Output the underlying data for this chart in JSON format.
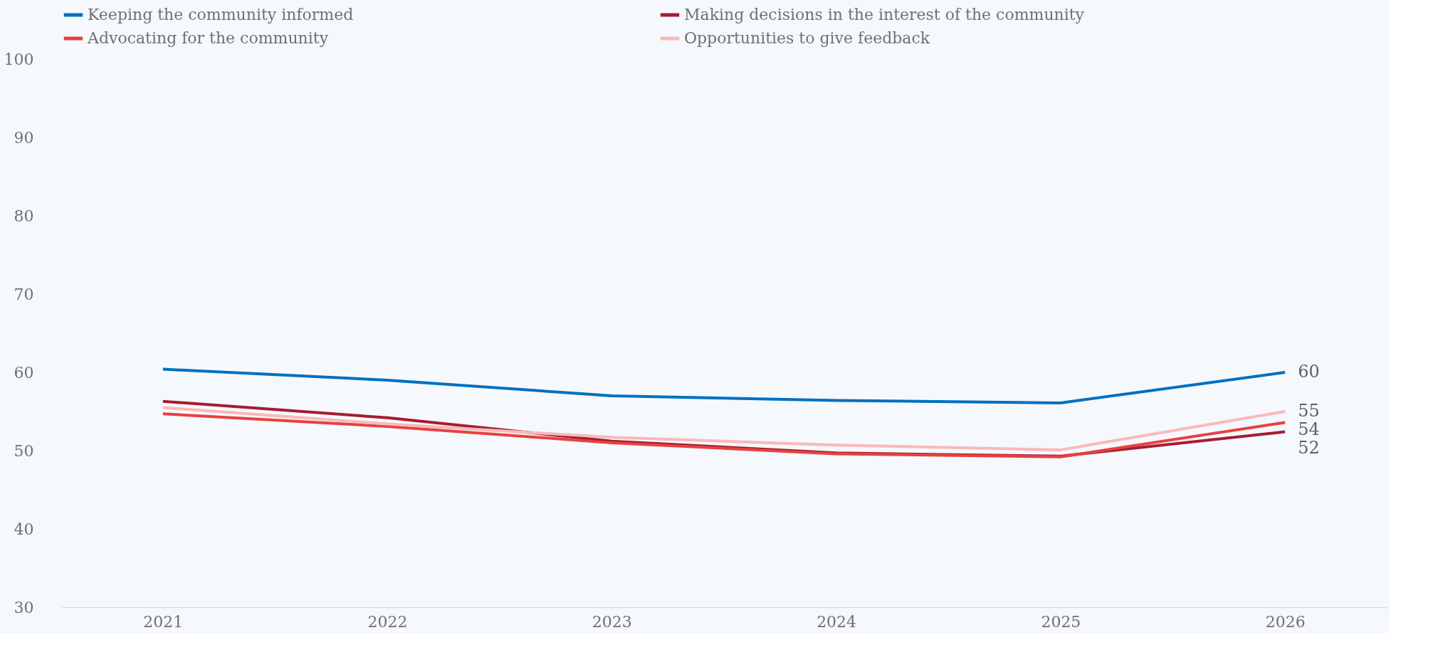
{
  "chart_data": {
    "type": "line",
    "categories": [
      "2021",
      "2022",
      "2023",
      "2024",
      "2025",
      "2026"
    ],
    "series": [
      {
        "name": "Keeping the community informed",
        "color": "#0070c0",
        "values": [
          60.4,
          59.0,
          57.0,
          56.4,
          56.1,
          60
        ],
        "value_labels": [
          null,
          null,
          null,
          null,
          null,
          "60"
        ]
      },
      {
        "name": "Making decisions in the interest of the community",
        "color": "#a51c30",
        "values": [
          56.3,
          54.2,
          51.2,
          49.7,
          49.3,
          52.4
        ],
        "value_labels": [
          null,
          null,
          null,
          null,
          null,
          "52"
        ]
      },
      {
        "name": "Advocating for the community",
        "color": "#e8403f",
        "values": [
          54.7,
          53.1,
          51.0,
          49.6,
          49.2,
          53.6
        ],
        "value_labels": [
          null,
          null,
          null,
          null,
          null,
          "54"
        ]
      },
      {
        "name": "Opportunities to give feedback",
        "color": "#f9b9b9",
        "values": [
          55.5,
          53.4,
          51.7,
          50.7,
          50.1,
          55.0
        ],
        "value_labels": [
          null,
          null,
          null,
          null,
          null,
          "55"
        ]
      }
    ],
    "ylim": [
      30,
      100
    ],
    "yticks": [
      30,
      40,
      50,
      60,
      70,
      80,
      90,
      100
    ],
    "grid": false,
    "legend": "top",
    "marker": "none",
    "line_style": "solid"
  }
}
